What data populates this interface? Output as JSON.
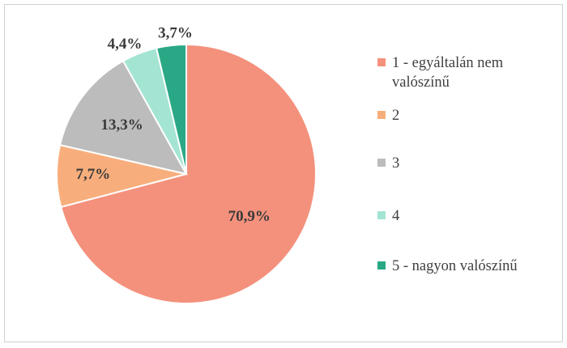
{
  "chart_data": {
    "type": "pie",
    "title": "",
    "categories": [
      "1 - egyáltalán nem valószínű",
      "2",
      "3",
      "4",
      "5 - nagyon valószínű"
    ],
    "values": [
      70.9,
      7.7,
      13.3,
      4.4,
      3.7
    ],
    "data_labels": [
      "70,9%",
      "7,7%",
      "13,3%",
      "4,4%",
      "3,7%"
    ],
    "colors": [
      "#f4917c",
      "#f8ae7c",
      "#bcbcbc",
      "#a4e4d2",
      "#2aa886"
    ],
    "start_angle_deg": 0,
    "direction": "clockwise",
    "legend_position": "right"
  },
  "legend": {
    "items": [
      {
        "label": "1 - egyáltalán nem valószínű",
        "color": "#f4917c"
      },
      {
        "label": "2",
        "color": "#f8ae7c"
      },
      {
        "label": "3",
        "color": "#bcbcbc"
      },
      {
        "label": "4",
        "color": "#a4e4d2"
      },
      {
        "label": "5 - nagyon valószínű",
        "color": "#2aa886"
      }
    ]
  }
}
